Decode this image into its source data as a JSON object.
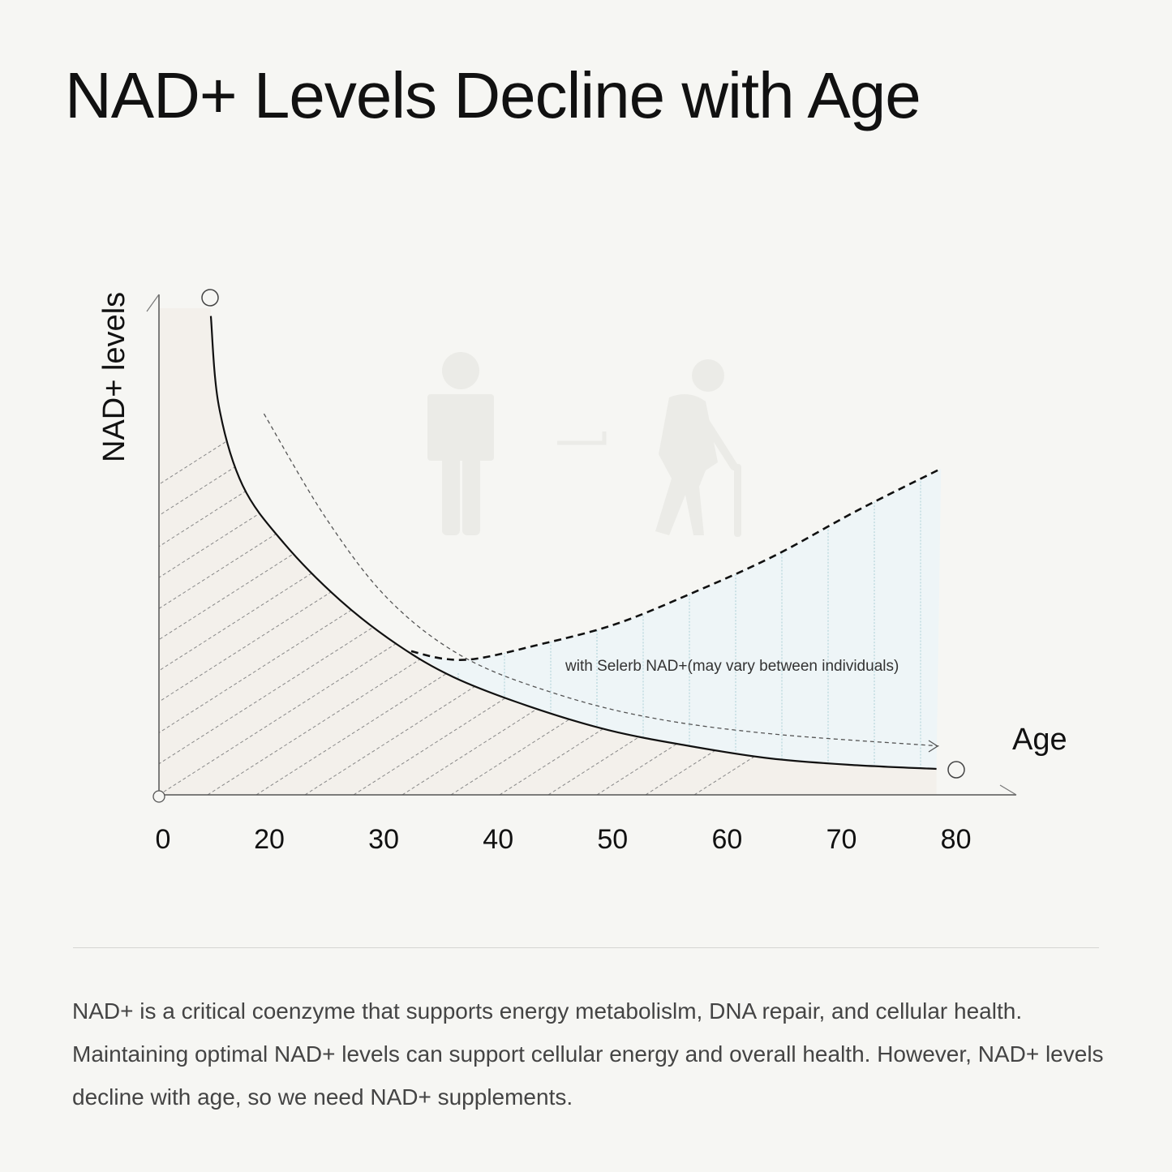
{
  "title": "NAD+ Levels Decline with Age",
  "description": "NAD+ is a critical coenzyme that supports energy metabolislm, DNA repair, and cellular health. Maintaining optimal NAD+ levels can support cellular energy and overall health. However, NAD+ levels decline with age, so we need NAD+ supplements.",
  "chart_data": {
    "type": "line",
    "title": "",
    "xlabel": "Age",
    "ylabel": "NAD+ levels",
    "x_ticks": [
      "0",
      "20",
      "30",
      "40",
      "50",
      "60",
      "70",
      "80"
    ],
    "grid": false,
    "annotation": "with Selerb NAD+(may vary between individuals)",
    "series": [
      {
        "style": "solid",
        "x": [
          9,
          10.5,
          15,
          21.3,
          26.2,
          31.2,
          36.1,
          42.5,
          49.6,
          56.7,
          63.8,
          70.9,
          78.3
        ],
        "y": [
          96,
          78,
          62,
          50.4,
          39,
          30.1,
          23.6,
          17.9,
          13,
          9.8,
          7.3,
          6,
          5.2
        ]
      },
      {
        "style": "dashed-bold",
        "x": [
          32.4,
          35.2,
          38.1,
          43,
          50.1,
          57.2,
          64.2,
          71.3,
          78.7
        ],
        "y": [
          28.8,
          27.3,
          27.3,
          29.8,
          34.1,
          40.7,
          48,
          56.9,
          65.4
        ]
      },
      {
        "style": "dashed-thin-arrow",
        "x": [
          19,
          25,
          30.5,
          37,
          45,
          53.5,
          64,
          78.5
        ],
        "y": [
          76.4,
          55.3,
          39,
          27.6,
          20.3,
          15.4,
          12.2,
          9.8
        ]
      }
    ],
    "colors": {
      "hatch_fill": "#f3f0eb",
      "selerb_fill": "#eef5f7",
      "line": "#111111",
      "figure_icon": "#ebebe7"
    }
  }
}
